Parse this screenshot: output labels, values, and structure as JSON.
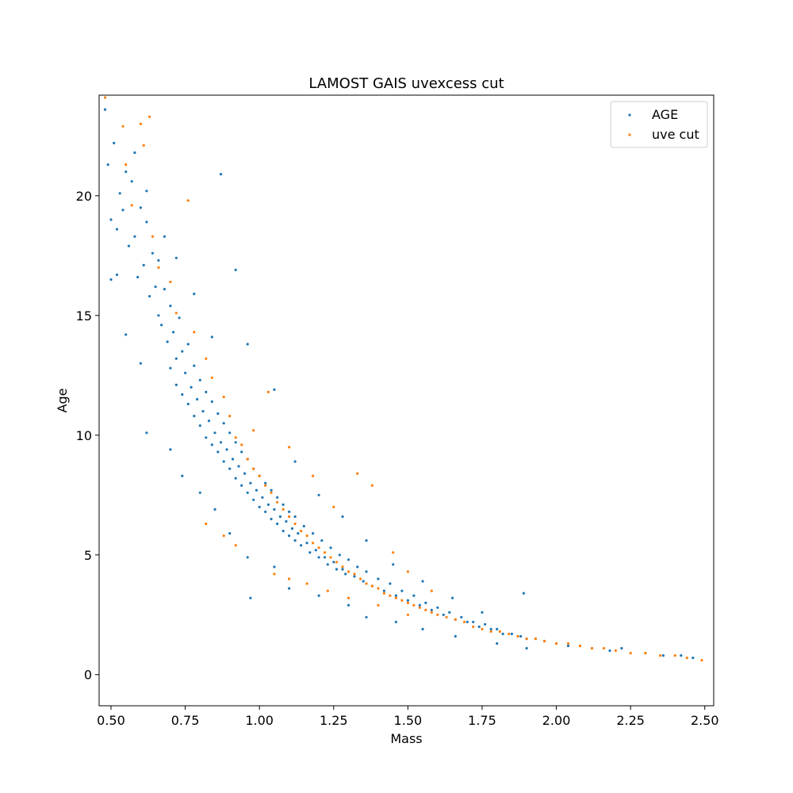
{
  "chart_data": {
    "type": "scatter",
    "title": "LAMOST GAIS uvexcess cut",
    "xlabel": "Mass",
    "ylabel": "Age",
    "xlim": [
      0.46,
      2.53
    ],
    "ylim": [
      -1.3,
      24.2
    ],
    "xticks": [
      0.5,
      0.75,
      1.0,
      1.25,
      1.5,
      1.75,
      2.0,
      2.25,
      2.5
    ],
    "xtick_labels": [
      "0.50",
      "0.75",
      "1.00",
      "1.25",
      "1.50",
      "1.75",
      "2.00",
      "2.25",
      "2.50"
    ],
    "yticks": [
      0,
      5,
      10,
      15,
      20
    ],
    "ytick_labels": [
      "0",
      "5",
      "10",
      "15",
      "20"
    ],
    "grid": false,
    "legend_position": "top-right",
    "series": [
      {
        "name": "AGE",
        "color": "#1f77b4",
        "points": [
          [
            0.48,
            23.6
          ],
          [
            0.49,
            21.3
          ],
          [
            0.5,
            19.0
          ],
          [
            0.5,
            16.5
          ],
          [
            0.51,
            22.2
          ],
          [
            0.52,
            18.6
          ],
          [
            0.53,
            20.1
          ],
          [
            0.54,
            19.4
          ],
          [
            0.55,
            21.0
          ],
          [
            0.56,
            17.9
          ],
          [
            0.57,
            20.6
          ],
          [
            0.58,
            18.3
          ],
          [
            0.59,
            16.6
          ],
          [
            0.6,
            19.5
          ],
          [
            0.61,
            17.1
          ],
          [
            0.62,
            18.9
          ],
          [
            0.63,
            15.8
          ],
          [
            0.64,
            17.6
          ],
          [
            0.65,
            16.2
          ],
          [
            0.66,
            15.0
          ],
          [
            0.66,
            17.3
          ],
          [
            0.67,
            14.6
          ],
          [
            0.68,
            16.1
          ],
          [
            0.69,
            13.9
          ],
          [
            0.7,
            15.4
          ],
          [
            0.7,
            12.8
          ],
          [
            0.71,
            14.3
          ],
          [
            0.72,
            13.2
          ],
          [
            0.72,
            12.1
          ],
          [
            0.73,
            14.9
          ],
          [
            0.74,
            11.7
          ],
          [
            0.74,
            13.5
          ],
          [
            0.75,
            12.6
          ],
          [
            0.76,
            11.3
          ],
          [
            0.76,
            13.8
          ],
          [
            0.77,
            12.0
          ],
          [
            0.78,
            10.8
          ],
          [
            0.78,
            12.9
          ],
          [
            0.79,
            11.5
          ],
          [
            0.8,
            10.4
          ],
          [
            0.8,
            12.3
          ],
          [
            0.81,
            11.0
          ],
          [
            0.82,
            9.9
          ],
          [
            0.82,
            11.8
          ],
          [
            0.83,
            10.6
          ],
          [
            0.84,
            9.6
          ],
          [
            0.84,
            11.4
          ],
          [
            0.85,
            10.1
          ],
          [
            0.86,
            9.3
          ],
          [
            0.86,
            10.9
          ],
          [
            0.87,
            9.7
          ],
          [
            0.88,
            8.9
          ],
          [
            0.88,
            10.5
          ],
          [
            0.89,
            9.4
          ],
          [
            0.9,
            8.6
          ],
          [
            0.9,
            10.1
          ],
          [
            0.91,
            9.0
          ],
          [
            0.92,
            8.2
          ],
          [
            0.92,
            9.7
          ],
          [
            0.93,
            8.7
          ],
          [
            0.94,
            7.9
          ],
          [
            0.94,
            9.3
          ],
          [
            0.95,
            8.4
          ],
          [
            0.96,
            7.6
          ],
          [
            0.96,
            9.0
          ],
          [
            0.97,
            8.0
          ],
          [
            0.98,
            7.3
          ],
          [
            0.98,
            8.6
          ],
          [
            0.99,
            7.7
          ],
          [
            1.0,
            7.0
          ],
          [
            1.0,
            8.3
          ],
          [
            1.01,
            7.4
          ],
          [
            1.02,
            6.8
          ],
          [
            1.02,
            8.0
          ],
          [
            1.03,
            7.1
          ],
          [
            1.04,
            6.5
          ],
          [
            1.04,
            7.7
          ],
          [
            1.05,
            6.9
          ],
          [
            1.06,
            6.3
          ],
          [
            1.06,
            7.4
          ],
          [
            1.07,
            6.6
          ],
          [
            1.08,
            6.0
          ],
          [
            1.08,
            7.1
          ],
          [
            1.09,
            6.4
          ],
          [
            1.1,
            5.8
          ],
          [
            1.1,
            6.8
          ],
          [
            1.11,
            6.1
          ],
          [
            1.12,
            5.6
          ],
          [
            1.12,
            6.6
          ],
          [
            1.13,
            5.9
          ],
          [
            1.14,
            5.4
          ],
          [
            1.15,
            6.2
          ],
          [
            1.16,
            5.5
          ],
          [
            1.17,
            5.1
          ],
          [
            1.18,
            5.9
          ],
          [
            1.19,
            5.2
          ],
          [
            1.2,
            4.9
          ],
          [
            1.21,
            5.6
          ],
          [
            1.22,
            4.9
          ],
          [
            1.23,
            4.6
          ],
          [
            1.24,
            5.3
          ],
          [
            1.25,
            4.7
          ],
          [
            1.26,
            4.4
          ],
          [
            1.27,
            5.0
          ],
          [
            1.28,
            4.4
          ],
          [
            1.29,
            4.2
          ],
          [
            1.3,
            4.8
          ],
          [
            1.32,
            4.1
          ],
          [
            1.33,
            4.5
          ],
          [
            1.35,
            3.9
          ],
          [
            1.36,
            4.3
          ],
          [
            1.38,
            3.7
          ],
          [
            1.4,
            4.0
          ],
          [
            1.42,
            3.5
          ],
          [
            1.44,
            3.8
          ],
          [
            1.46,
            3.3
          ],
          [
            1.48,
            3.5
          ],
          [
            1.5,
            3.1
          ],
          [
            1.52,
            3.3
          ],
          [
            1.54,
            2.9
          ],
          [
            1.56,
            3.0
          ],
          [
            1.58,
            2.7
          ],
          [
            1.6,
            2.8
          ],
          [
            1.62,
            2.5
          ],
          [
            1.64,
            2.6
          ],
          [
            1.66,
            2.3
          ],
          [
            1.68,
            2.4
          ],
          [
            1.7,
            2.2
          ],
          [
            1.72,
            2.2
          ],
          [
            1.74,
            2.0
          ],
          [
            1.76,
            2.1
          ],
          [
            1.78,
            1.9
          ],
          [
            1.8,
            1.9
          ],
          [
            1.82,
            1.7
          ],
          [
            1.85,
            1.7
          ],
          [
            1.88,
            1.6
          ],
          [
            1.9,
            1.5
          ],
          [
            1.93,
            1.5
          ],
          [
            1.96,
            1.4
          ],
          [
            2.0,
            1.3
          ],
          [
            2.04,
            1.2
          ],
          [
            2.08,
            1.2
          ],
          [
            2.12,
            1.1
          ],
          [
            2.18,
            1.0
          ],
          [
            2.22,
            1.1
          ],
          [
            2.3,
            0.9
          ],
          [
            2.36,
            0.8
          ],
          [
            2.42,
            0.8
          ],
          [
            2.46,
            0.7
          ],
          [
            0.58,
            21.8
          ],
          [
            0.62,
            20.2
          ],
          [
            0.68,
            18.3
          ],
          [
            0.72,
            17.4
          ],
          [
            0.78,
            15.9
          ],
          [
            0.84,
            14.1
          ],
          [
            0.87,
            20.9
          ],
          [
            0.92,
            16.9
          ],
          [
            0.96,
            13.8
          ],
          [
            1.05,
            11.9
          ],
          [
            0.55,
            14.2
          ],
          [
            0.52,
            16.7
          ],
          [
            0.6,
            13.0
          ],
          [
            0.62,
            10.1
          ],
          [
            0.7,
            9.4
          ],
          [
            0.74,
            8.3
          ],
          [
            0.8,
            7.6
          ],
          [
            0.85,
            6.9
          ],
          [
            0.9,
            5.9
          ],
          [
            0.96,
            4.9
          ],
          [
            0.97,
            3.2
          ],
          [
            1.05,
            4.5
          ],
          [
            1.1,
            3.6
          ],
          [
            1.2,
            3.3
          ],
          [
            1.3,
            2.9
          ],
          [
            1.36,
            2.4
          ],
          [
            1.46,
            2.2
          ],
          [
            1.55,
            1.9
          ],
          [
            1.66,
            1.6
          ],
          [
            1.8,
            1.3
          ],
          [
            1.9,
            1.1
          ],
          [
            1.12,
            8.9
          ],
          [
            1.2,
            7.5
          ],
          [
            1.28,
            6.6
          ],
          [
            1.36,
            5.6
          ],
          [
            1.45,
            4.6
          ],
          [
            1.55,
            3.9
          ],
          [
            1.65,
            3.2
          ],
          [
            1.75,
            2.6
          ],
          [
            1.89,
            3.4
          ]
        ]
      },
      {
        "name": "uve cut",
        "color": "#ff7f0e",
        "points": [
          [
            0.48,
            24.1
          ],
          [
            0.54,
            22.9
          ],
          [
            0.55,
            21.3
          ],
          [
            0.57,
            19.6
          ],
          [
            0.6,
            23.0
          ],
          [
            0.63,
            23.3
          ],
          [
            0.61,
            22.1
          ],
          [
            0.64,
            18.3
          ],
          [
            0.66,
            17.0
          ],
          [
            0.7,
            16.4
          ],
          [
            0.72,
            15.1
          ],
          [
            0.76,
            19.8
          ],
          [
            0.78,
            14.3
          ],
          [
            0.82,
            13.2
          ],
          [
            0.84,
            12.4
          ],
          [
            0.88,
            11.6
          ],
          [
            0.9,
            10.8
          ],
          [
            0.92,
            9.9
          ],
          [
            0.94,
            9.6
          ],
          [
            0.96,
            9.0
          ],
          [
            0.98,
            8.6
          ],
          [
            1.0,
            8.3
          ],
          [
            1.02,
            7.9
          ],
          [
            1.04,
            7.6
          ],
          [
            1.06,
            7.2
          ],
          [
            1.08,
            6.9
          ],
          [
            1.1,
            6.6
          ],
          [
            1.12,
            6.3
          ],
          [
            1.14,
            6.0
          ],
          [
            1.16,
            5.8
          ],
          [
            1.18,
            5.5
          ],
          [
            1.2,
            5.3
          ],
          [
            1.22,
            5.1
          ],
          [
            1.24,
            4.9
          ],
          [
            1.26,
            4.7
          ],
          [
            1.28,
            4.5
          ],
          [
            1.3,
            4.3
          ],
          [
            1.32,
            4.2
          ],
          [
            1.34,
            4.0
          ],
          [
            1.36,
            3.8
          ],
          [
            1.38,
            3.7
          ],
          [
            1.4,
            3.6
          ],
          [
            1.42,
            3.4
          ],
          [
            1.44,
            3.3
          ],
          [
            1.46,
            3.2
          ],
          [
            1.48,
            3.1
          ],
          [
            1.5,
            3.0
          ],
          [
            1.52,
            2.9
          ],
          [
            1.54,
            2.8
          ],
          [
            1.56,
            2.7
          ],
          [
            1.58,
            2.6
          ],
          [
            1.6,
            2.5
          ],
          [
            1.63,
            2.4
          ],
          [
            1.66,
            2.3
          ],
          [
            1.69,
            2.2
          ],
          [
            1.72,
            2.0
          ],
          [
            1.75,
            1.9
          ],
          [
            1.78,
            1.8
          ],
          [
            1.81,
            1.8
          ],
          [
            1.84,
            1.7
          ],
          [
            1.87,
            1.6
          ],
          [
            1.9,
            1.5
          ],
          [
            1.93,
            1.5
          ],
          [
            1.96,
            1.4
          ],
          [
            2.0,
            1.3
          ],
          [
            2.04,
            1.3
          ],
          [
            2.08,
            1.2
          ],
          [
            2.12,
            1.1
          ],
          [
            2.16,
            1.1
          ],
          [
            2.2,
            1.0
          ],
          [
            2.25,
            0.9
          ],
          [
            2.3,
            0.9
          ],
          [
            2.35,
            0.8
          ],
          [
            2.4,
            0.8
          ],
          [
            2.44,
            0.7
          ],
          [
            2.49,
            0.6
          ],
          [
            0.98,
            10.2
          ],
          [
            1.03,
            11.8
          ],
          [
            1.1,
            9.5
          ],
          [
            1.18,
            8.3
          ],
          [
            1.25,
            7.0
          ],
          [
            1.33,
            8.4
          ],
          [
            1.38,
            7.9
          ],
          [
            1.45,
            5.1
          ],
          [
            1.5,
            4.3
          ],
          [
            1.58,
            3.5
          ],
          [
            0.82,
            6.3
          ],
          [
            0.88,
            5.8
          ],
          [
            0.92,
            5.4
          ],
          [
            1.05,
            4.2
          ],
          [
            1.1,
            4.0
          ],
          [
            1.16,
            3.8
          ],
          [
            1.23,
            3.5
          ],
          [
            1.3,
            3.2
          ],
          [
            1.4,
            2.9
          ],
          [
            1.5,
            2.5
          ]
        ]
      }
    ]
  }
}
